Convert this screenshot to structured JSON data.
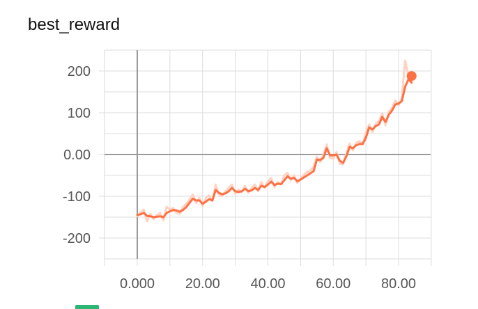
{
  "title": "best_reward",
  "colors": {
    "smoothed": "#ff7043",
    "raw": "#ffd2c2",
    "grid": "#dcdcdc",
    "axis": "#9a9a9a",
    "tick_text": "#555555",
    "bottom_chip": "#2bb673"
  },
  "chart_data": {
    "type": "line",
    "title": "best_reward",
    "xlabel": "",
    "ylabel": "",
    "xlim": [
      -10,
      90
    ],
    "ylim": [
      -260,
      250
    ],
    "grid": true,
    "x_ticks": [
      0,
      20,
      40,
      60,
      80
    ],
    "x_tick_labels": [
      "0.000",
      "20.00",
      "40.00",
      "60.00",
      "80.00"
    ],
    "y_ticks": [
      200,
      100,
      0,
      -100,
      -200
    ],
    "y_tick_labels": [
      "200",
      "100",
      "0.00",
      "-100",
      "-200"
    ],
    "series": [
      {
        "role": "smoothed",
        "x": [
          0,
          1,
          2,
          3,
          4,
          5,
          6,
          7,
          8,
          9,
          10,
          11,
          12,
          13,
          14,
          15,
          16,
          17,
          18,
          19,
          20,
          21,
          22,
          23,
          24,
          25,
          26,
          27,
          28,
          29,
          30,
          31,
          32,
          33,
          34,
          35,
          36,
          37,
          38,
          39,
          40,
          41,
          42,
          43,
          44,
          45,
          46,
          47,
          48,
          49,
          50,
          51,
          52,
          53,
          54,
          55,
          56,
          57,
          58,
          59,
          60,
          61,
          62,
          63,
          64,
          65,
          66,
          67,
          68,
          69,
          70,
          71,
          72,
          73,
          74,
          75,
          76,
          77,
          78,
          79,
          80,
          81,
          82,
          83,
          84
        ],
        "y": [
          -145,
          -143,
          -140,
          -147,
          -148,
          -150,
          -149,
          -148,
          -150,
          -140,
          -136,
          -133,
          -134,
          -137,
          -133,
          -126,
          -116,
          -106,
          -110,
          -110,
          -118,
          -113,
          -107,
          -110,
          -85,
          -92,
          -95,
          -93,
          -88,
          -80,
          -88,
          -90,
          -88,
          -82,
          -88,
          -86,
          -80,
          -85,
          -75,
          -78,
          -72,
          -65,
          -73,
          -70,
          -71,
          -62,
          -52,
          -58,
          -56,
          -64,
          -60,
          -55,
          -50,
          -45,
          -40,
          -12,
          -13,
          -8,
          15,
          -2,
          -2,
          0,
          -15,
          -20,
          -5,
          18,
          15,
          22,
          25,
          25,
          40,
          65,
          60,
          68,
          72,
          90,
          78,
          95,
          105,
          120,
          122,
          128,
          162,
          180,
          172
        ]
      },
      {
        "role": "raw",
        "x": [
          0,
          1,
          2,
          3,
          4,
          5,
          6,
          7,
          8,
          9,
          10,
          11,
          12,
          13,
          14,
          15,
          16,
          17,
          18,
          19,
          20,
          21,
          22,
          23,
          24,
          25,
          26,
          27,
          28,
          29,
          30,
          31,
          32,
          33,
          34,
          35,
          36,
          37,
          38,
          39,
          40,
          41,
          42,
          43,
          44,
          45,
          46,
          47,
          48,
          49,
          50,
          51,
          52,
          53,
          54,
          55,
          56,
          57,
          58,
          59,
          60,
          61,
          62,
          63,
          64,
          65,
          66,
          67,
          68,
          69,
          70,
          71,
          72,
          73,
          74,
          75,
          76,
          77,
          78,
          79,
          80,
          81,
          82,
          83,
          84
        ],
        "y": [
          -150,
          -138,
          -132,
          -160,
          -142,
          -155,
          -145,
          -140,
          -158,
          -125,
          -132,
          -128,
          -140,
          -142,
          -126,
          -118,
          -108,
          -96,
          -116,
          -104,
          -124,
          -104,
          -98,
          -112,
          -72,
          -96,
          -100,
          -88,
          -80,
          -72,
          -94,
          -84,
          -90,
          -75,
          -92,
          -80,
          -72,
          -88,
          -66,
          -80,
          -64,
          -56,
          -78,
          -66,
          -72,
          -50,
          -44,
          -62,
          -50,
          -68,
          -58,
          -48,
          -42,
          -38,
          -30,
          -5,
          -18,
          0,
          24,
          -8,
          -10,
          6,
          -22,
          -24,
          2,
          26,
          10,
          28,
          32,
          24,
          52,
          72,
          54,
          74,
          80,
          98,
          70,
          102,
          112,
          130,
          118,
          135,
          225,
          190,
          176
        ]
      }
    ],
    "last_point": {
      "x": 84,
      "y": 188
    }
  }
}
